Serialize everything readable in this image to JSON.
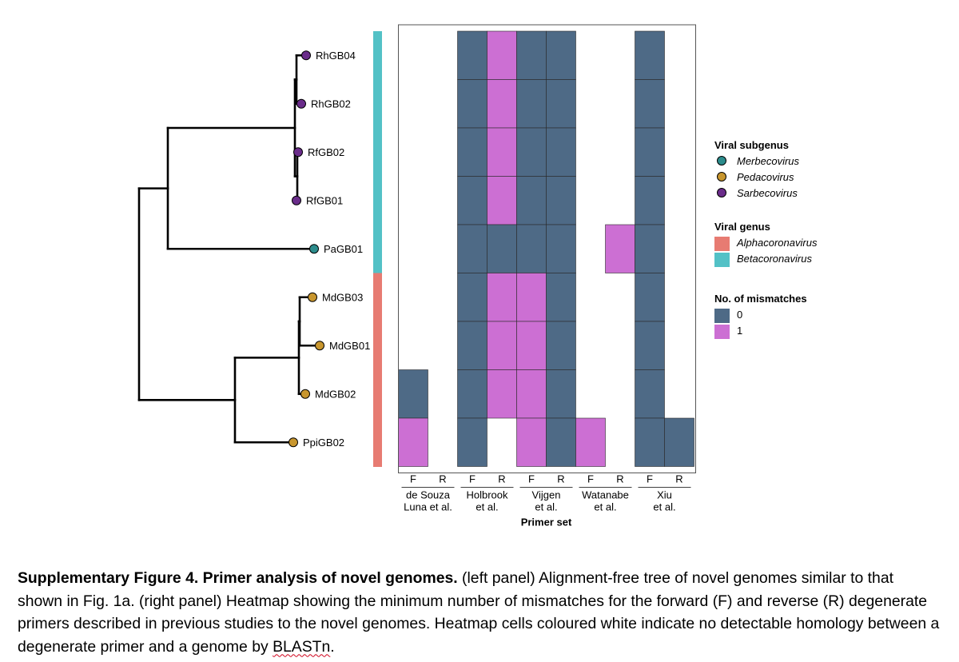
{
  "chart_data": {
    "type": "heatmap",
    "rows": [
      "RhGB04",
      "RhGB02",
      "RfGB02",
      "RfGB01",
      "PaGB01",
      "MdGB03",
      "MdGB01",
      "MdGB02",
      "PpiGB02"
    ],
    "row_subgenus": [
      "Sarbecovirus",
      "Sarbecovirus",
      "Sarbecovirus",
      "Sarbecovirus",
      "Merbecovirus",
      "Pedacovirus",
      "Pedacovirus",
      "Pedacovirus",
      "Pedacovirus"
    ],
    "row_genus": [
      "Betacoronavirus",
      "Betacoronavirus",
      "Betacoronavirus",
      "Betacoronavirus",
      "Betacoronavirus",
      "Alphacoronavirus",
      "Alphacoronavirus",
      "Alphacoronavirus",
      "Alphacoronavirus"
    ],
    "column_direction_labels": [
      "F",
      "R",
      "F",
      "R",
      "F",
      "R",
      "F",
      "R",
      "F",
      "R"
    ],
    "primer_sets": [
      {
        "line1": "de Souza",
        "line2": "Luna et al."
      },
      {
        "line1": "Holbrook",
        "line2": "et al."
      },
      {
        "line1": "Vijgen",
        "line2": "et al."
      },
      {
        "line1": "Watanabe",
        "line2": "et al."
      },
      {
        "line1": "Xiu",
        "line2": "et al."
      }
    ],
    "xlabel": "Primer set",
    "values": [
      [
        null,
        null,
        0,
        1,
        0,
        0,
        null,
        null,
        0,
        null
      ],
      [
        null,
        null,
        0,
        1,
        0,
        0,
        null,
        null,
        0,
        null
      ],
      [
        null,
        null,
        0,
        1,
        0,
        0,
        null,
        null,
        0,
        null
      ],
      [
        null,
        null,
        0,
        1,
        0,
        0,
        null,
        null,
        0,
        null
      ],
      [
        null,
        null,
        0,
        0,
        0,
        0,
        null,
        1,
        0,
        null
      ],
      [
        null,
        null,
        0,
        1,
        1,
        0,
        null,
        null,
        0,
        null
      ],
      [
        null,
        null,
        0,
        1,
        1,
        0,
        null,
        null,
        0,
        null
      ],
      [
        0,
        null,
        0,
        1,
        1,
        0,
        null,
        null,
        0,
        null
      ],
      [
        1,
        null,
        0,
        null,
        1,
        0,
        1,
        null,
        0,
        0
      ]
    ],
    "legends": {
      "subgenus": {
        "title": "Viral subgenus",
        "items": [
          {
            "label": "Merbecovirus",
            "color": "#2c8c8c"
          },
          {
            "label": "Pedacovirus",
            "color": "#c8962e"
          },
          {
            "label": "Sarbecovirus",
            "color": "#6a2c8a"
          }
        ]
      },
      "genus": {
        "title": "Viral genus",
        "items": [
          {
            "label": "Alphacoronavirus",
            "color": "#e77b72"
          },
          {
            "label": "Betacoronavirus",
            "color": "#53c1c6"
          }
        ]
      },
      "mismatches": {
        "title": "No. of mismatches",
        "items": [
          {
            "label": "0",
            "color": "#4e6a86"
          },
          {
            "label": "1",
            "color": "#cc6fd3"
          }
        ]
      }
    },
    "tree": {
      "nodes": {
        "root": {
          "d": 0,
          "children": [
            "A",
            "B"
          ]
        },
        "A": {
          "d": 0.36,
          "children": [
            "C",
            "PaGB01"
          ]
        },
        "C": {
          "d": 1.95,
          "children": [
            "D",
            "E"
          ]
        },
        "D": {
          "d": 1.97,
          "children": [
            "RhGB04",
            "RhGB02"
          ]
        },
        "E": {
          "d": 1.98,
          "children": [
            "RfGB02",
            "RfGB01"
          ]
        },
        "B": {
          "d": 1.2,
          "children": [
            "F",
            "PpiGB02"
          ]
        },
        "F": {
          "d": 2.0,
          "children": [
            "G",
            "MdGB02"
          ]
        },
        "G": {
          "d": 2.01,
          "children": [
            "MdGB03",
            "MdGB01"
          ]
        }
      },
      "leaf_depth": {
        "RhGB04": 2.09,
        "RhGB02": 2.03,
        "RfGB02": 1.99,
        "RfGB01": 1.97,
        "PaGB01": 2.19,
        "MdGB03": 2.17,
        "MdGB01": 2.26,
        "MdGB02": 2.08,
        "PpiGB02": 1.93
      }
    }
  },
  "caption": {
    "title": "Supplementary Figure 4. Primer analysis of novel genomes.",
    "text_part1": " (left panel) Alignment-free tree of novel genomes similar to that shown in Fig. 1a. (right panel) Heatmap showing the minimum number of mismatches for the forward (F) and reverse (R) degenerate primers described in previous studies to the novel genomes. Heatmap cells coloured white indicate no detectable homology between a degenerate primer and a genome by ",
    "blastn": "BLASTn",
    "text_end": "."
  }
}
